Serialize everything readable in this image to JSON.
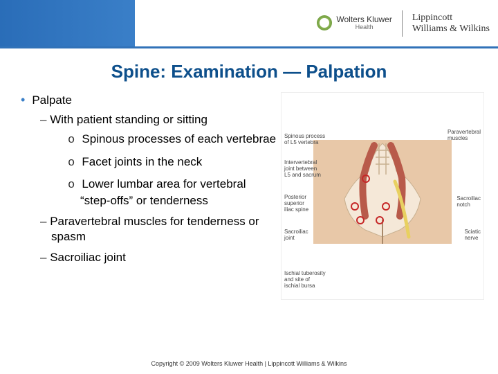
{
  "header": {
    "accent_color": "#3172b8",
    "wk_name": "Wolters Kluwer",
    "wk_sub": "Health",
    "lww_line1": "Lippincott",
    "lww_line2": "Williams & Wilkins"
  },
  "title": {
    "text": "Spine: Examination — Palpation",
    "color": "#0d4f8b"
  },
  "content": {
    "l1": "Palpate",
    "l2a": "With patient standing or sitting",
    "l3a": "Spinous processes of each vertebrae",
    "l3b": "Facet joints in the neck",
    "l3c": "Lower lumbar area for vertebral “step-offs” or tenderness",
    "l2b": "Paravertebral muscles for tenderness or spasm",
    "l2c": "Sacroiliac joint"
  },
  "figure": {
    "labels": {
      "spinous": "Spinous process\nof L5 vertebra",
      "interv": "Intervertebral\njoint between\nL5 and sacrum",
      "psis": "Posterior\nsuperior\niliac spine",
      "sij": "Sacroiliac\njoint",
      "ischial": "Ischial tuberosity\nand site of\nischial bursa",
      "paravert": "Paravertebral\nmuscles",
      "sacnotch": "Sacroiliac\nnotch",
      "sciatic": "Sciatic\nnerve"
    },
    "colors": {
      "skin": "#e8c8a8",
      "bone": "#f5e8d8",
      "muscle": "#b85a4a",
      "nerve": "#e8d060",
      "marker": "#c62828"
    }
  },
  "copyright": "Copyright © 2009 Wolters Kluwer Health | Lippincott Williams & Wilkins"
}
